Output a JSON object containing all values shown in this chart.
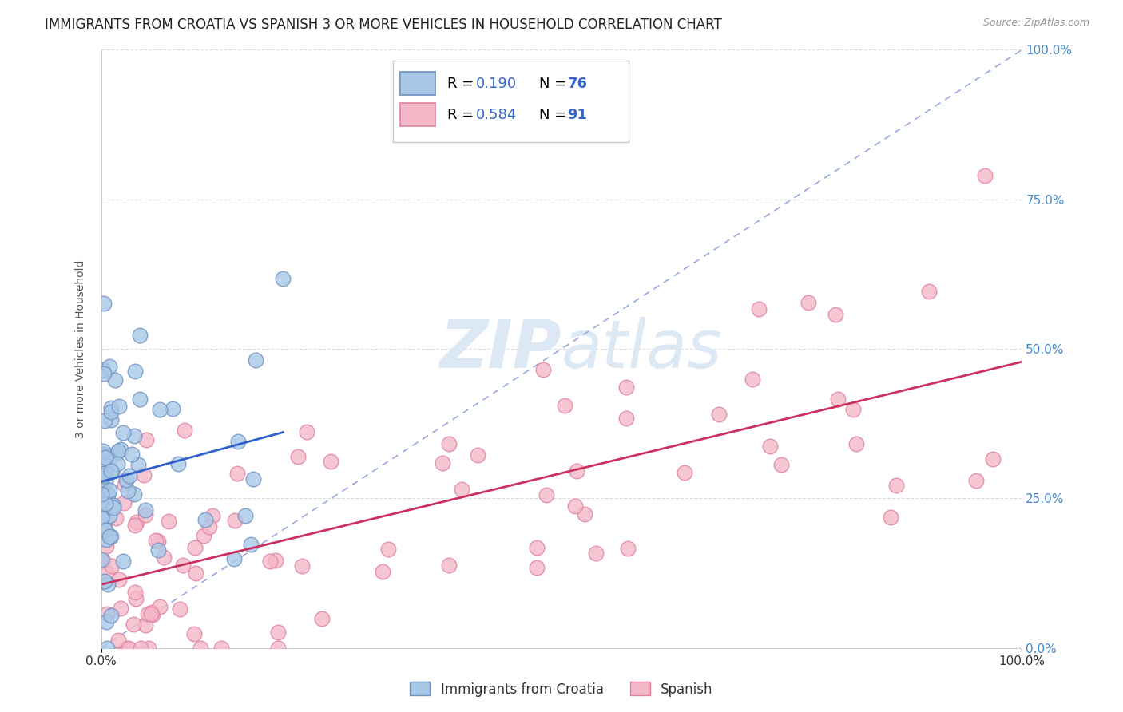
{
  "title": "IMMIGRANTS FROM CROATIA VS SPANISH 3 OR MORE VEHICLES IN HOUSEHOLD CORRELATION CHART",
  "source": "Source: ZipAtlas.com",
  "ylabel": "3 or more Vehicles in Household",
  "xlim": [
    0,
    100
  ],
  "ylim": [
    0,
    100
  ],
  "xtick_labels": [
    "0.0%",
    "100.0%"
  ],
  "xtick_values": [
    0,
    100
  ],
  "ytick_labels": [
    "0.0%",
    "25.0%",
    "50.0%",
    "75.0%",
    "100.0%"
  ],
  "ytick_values": [
    0,
    25,
    50,
    75,
    100
  ],
  "legend_labels": [
    "Immigrants from Croatia",
    "Spanish"
  ],
  "blue_color": "#a8c8e8",
  "pink_color": "#f4b8c8",
  "blue_edge": "#7090c0",
  "pink_edge": "#e080a0",
  "trend_blue": "#3060cc",
  "trend_pink": "#cc3060",
  "ref_line_color": "#99aadd",
  "watermark_color": "#dde8f5",
  "r_blue": 0.19,
  "n_blue": 76,
  "r_pink": 0.584,
  "n_pink": 91,
  "legend_r_color": "#000000",
  "legend_val_color": "#3366cc",
  "title_fontsize": 12,
  "axis_label_fontsize": 10,
  "tick_fontsize": 11,
  "legend_fontsize": 14,
  "right_tick_color": "#4488cc",
  "grid_color": "#dddddd",
  "grid_style": "--"
}
